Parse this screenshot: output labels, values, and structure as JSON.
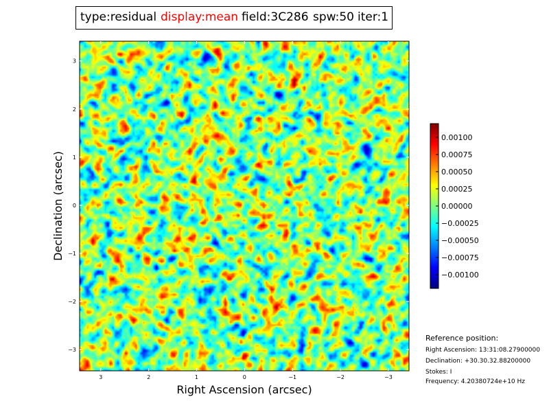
{
  "title": {
    "segments": [
      {
        "text": "type:residual",
        "color": "#000000"
      },
      {
        "text": "display:mean",
        "color": "#ff0000"
      },
      {
        "text": "field:3C286",
        "color": "#000000"
      },
      {
        "text": "spw:50",
        "color": "#000000"
      },
      {
        "text": "iter:1",
        "color": "#000000"
      }
    ]
  },
  "chart_data": {
    "type": "heatmap",
    "colormap": "jet",
    "xlabel": "Right Ascension (arcsec)",
    "ylabel": "Declination (arcsec)",
    "xlim": [
      3.44,
      -3.43
    ],
    "ylim": [
      -3.44,
      3.41
    ],
    "x_ticks": [
      3,
      2,
      1,
      0,
      -1,
      -2,
      -3
    ],
    "x_tick_labels": [
      "3",
      "2",
      "1",
      "0",
      "−1",
      "−2",
      "−3"
    ],
    "y_ticks": [
      3,
      2,
      1,
      0,
      -1,
      -2,
      -3
    ],
    "y_tick_labels": [
      "3",
      "2",
      "1",
      "0",
      "−1",
      "−2",
      "−3"
    ],
    "colorbar": {
      "clim": [
        -0.0012,
        0.0012
      ],
      "ticks": [
        0.001,
        0.00075,
        0.0005,
        0.00025,
        0,
        -0.00025,
        -0.0005,
        -0.00075,
        -0.001
      ],
      "tick_labels": [
        "0.00100",
        "0.00075",
        "0.00050",
        "0.00025",
        "0.00000",
        "−0.00025",
        "−0.00050",
        "−0.00075",
        "−0.00100"
      ]
    },
    "grid": false
  },
  "reference": {
    "heading": "Reference position:",
    "ra": "Right Ascension: 13:31:08.27900000",
    "dec": "Declination: +30.30.32.88200000",
    "stokes": "Stokes: I",
    "frequency": "Frequency: 4.20380724e+10 Hz"
  }
}
